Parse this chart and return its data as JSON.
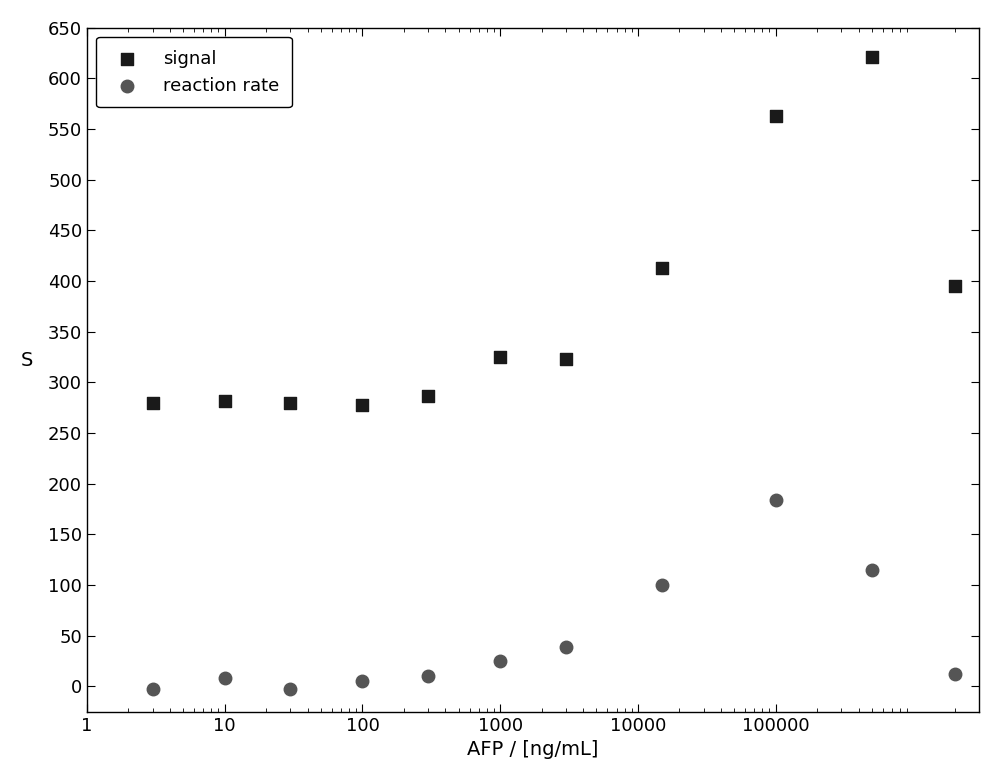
{
  "signal_x": [
    3,
    10,
    30,
    100,
    300,
    1000,
    3000,
    15000,
    100000,
    500000,
    2000000
  ],
  "signal_y": [
    280,
    282,
    280,
    278,
    287,
    325,
    323,
    413,
    563,
    621,
    395
  ],
  "reaction_x": [
    3,
    10,
    30,
    100,
    300,
    1000,
    3000,
    15000,
    100000,
    500000,
    2000000
  ],
  "reaction_y": [
    -3,
    8,
    -3,
    5,
    10,
    25,
    39,
    100,
    184,
    115,
    12
  ],
  "xlabel": "AFP / [ng/mL]",
  "ylabel": "S",
  "ylim": [
    -25,
    650
  ],
  "yticks": [
    0,
    50,
    100,
    150,
    200,
    250,
    300,
    350,
    400,
    450,
    500,
    550,
    600,
    650
  ],
  "xlim_log": [
    1,
    3000000
  ],
  "xtick_positions": [
    1,
    10,
    100,
    1000,
    10000,
    100000
  ],
  "xtick_labels": [
    "1",
    "10",
    "100",
    "1000",
    "10000",
    "100000"
  ],
  "signal_color": "#1a1a1a",
  "reaction_color": "#555555",
  "signal_marker": "s",
  "reaction_marker": "o",
  "marker_size": 9,
  "legend_loc": "upper left",
  "background_color": "#ffffff",
  "signal_label": "signal",
  "reaction_label": "reaction rate",
  "font_size_ticks": 13,
  "font_size_labels": 14,
  "font_size_legend": 13
}
